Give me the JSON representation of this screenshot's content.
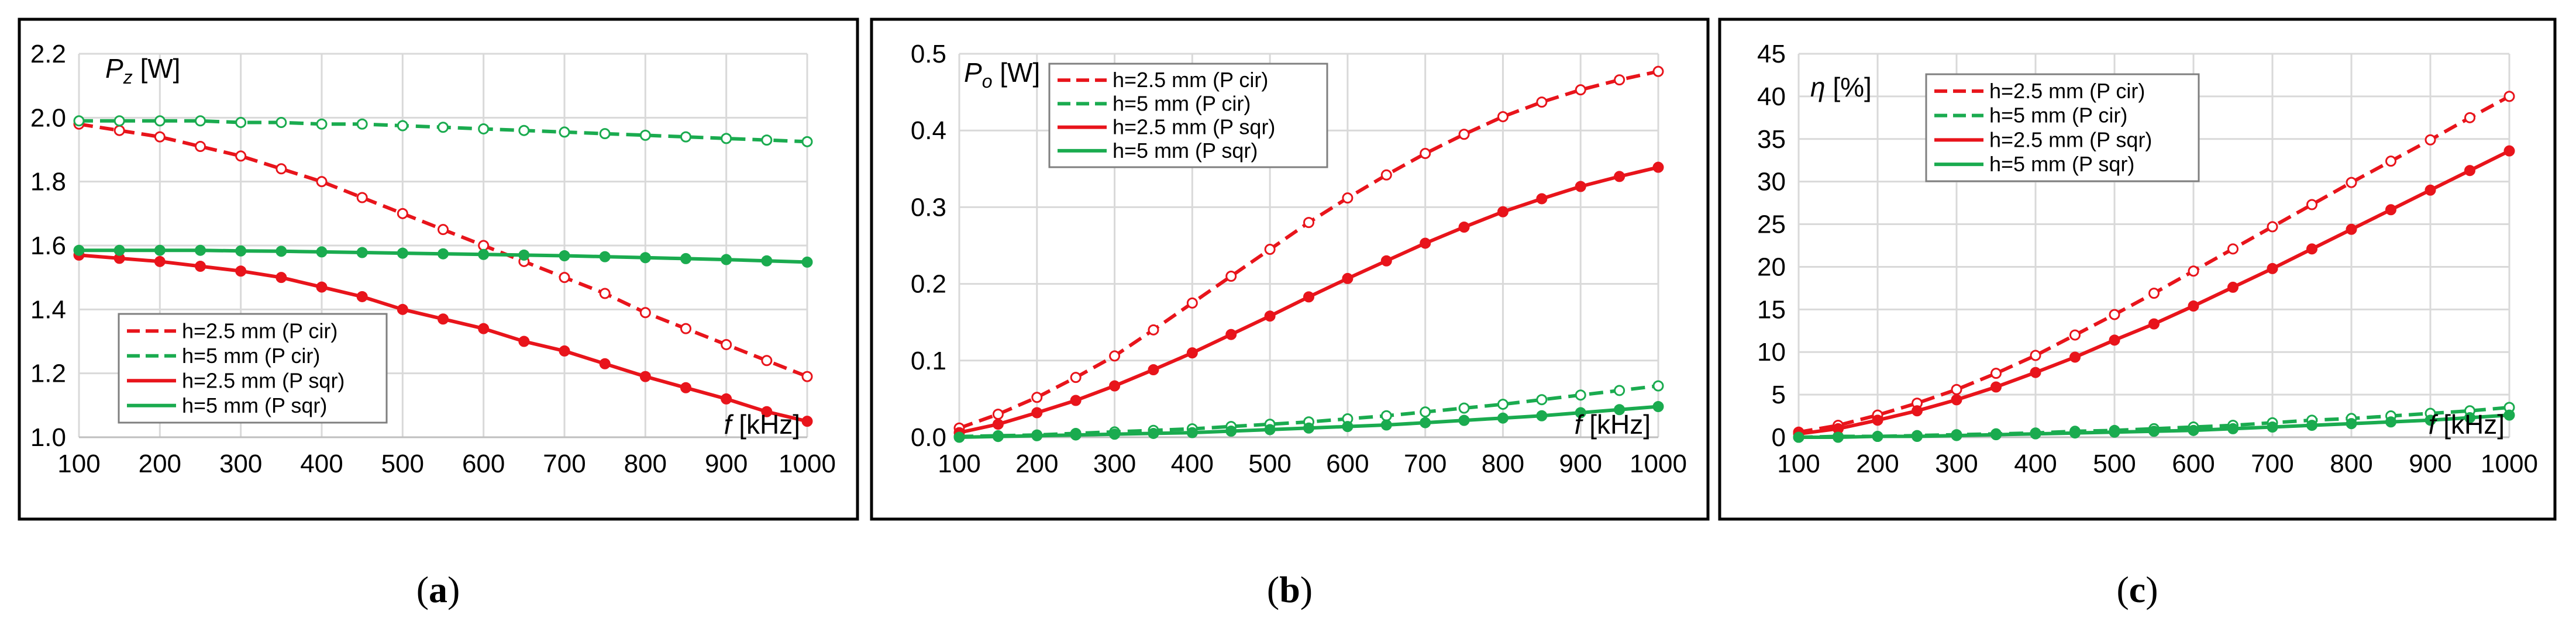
{
  "figure": {
    "captions": [
      "(a)",
      "(b)",
      "(c)"
    ]
  },
  "chart_data": [
    {
      "type": "line",
      "ylabel_symbol": "P",
      "ylabel_sub": "z",
      "ylabel_unit": " [W]",
      "xlabel_symbol": "f",
      "xlabel_unit": " [kHz]",
      "x": [
        100,
        150,
        200,
        250,
        300,
        350,
        400,
        450,
        500,
        550,
        600,
        650,
        700,
        750,
        800,
        850,
        900,
        950,
        1000
      ],
      "xlim": [
        100,
        1000
      ],
      "ylim": [
        1.0,
        2.2
      ],
      "xticks": [
        100,
        200,
        300,
        400,
        500,
        600,
        700,
        800,
        900,
        1000
      ],
      "yticks": [
        1.0,
        1.2,
        1.4,
        1.6,
        1.8,
        2.0,
        2.2
      ],
      "ytick_labels": [
        "1.0",
        "1.2",
        "1.4",
        "1.6",
        "1.8",
        "2.0",
        "2.2"
      ],
      "legend_position": "bottom-left",
      "series": [
        {
          "name": "h=2.5 mm (P cir)",
          "color": "#e8141b",
          "style": "dashed",
          "marker": "open",
          "values": [
            1.98,
            1.96,
            1.94,
            1.91,
            1.88,
            1.84,
            1.8,
            1.75,
            1.7,
            1.65,
            1.6,
            1.55,
            1.5,
            1.45,
            1.39,
            1.34,
            1.29,
            1.24,
            1.19
          ]
        },
        {
          "name": "h=5 mm (P cir)",
          "color": "#1aab4f",
          "style": "dashed",
          "marker": "open",
          "values": [
            1.99,
            1.99,
            1.99,
            1.99,
            1.985,
            1.985,
            1.98,
            1.98,
            1.975,
            1.97,
            1.965,
            1.96,
            1.955,
            1.95,
            1.945,
            1.94,
            1.935,
            1.93,
            1.925
          ]
        },
        {
          "name": "h=2.5 mm (P sqr)",
          "color": "#e8141b",
          "style": "solid",
          "marker": "filled",
          "values": [
            1.57,
            1.56,
            1.55,
            1.535,
            1.52,
            1.5,
            1.47,
            1.44,
            1.4,
            1.37,
            1.34,
            1.3,
            1.27,
            1.23,
            1.19,
            1.155,
            1.12,
            1.08,
            1.05
          ]
        },
        {
          "name": "h=5 mm (P sqr)",
          "color": "#1aab4f",
          "style": "solid",
          "marker": "filled",
          "values": [
            1.585,
            1.585,
            1.585,
            1.585,
            1.583,
            1.582,
            1.58,
            1.578,
            1.576,
            1.574,
            1.572,
            1.57,
            1.568,
            1.565,
            1.562,
            1.559,
            1.556,
            1.552,
            1.548
          ]
        }
      ]
    },
    {
      "type": "line",
      "ylabel_symbol": "P",
      "ylabel_sub": "o",
      "ylabel_unit": " [W]",
      "xlabel_symbol": "f",
      "xlabel_unit": " [kHz]",
      "x": [
        100,
        150,
        200,
        250,
        300,
        350,
        400,
        450,
        500,
        550,
        600,
        650,
        700,
        750,
        800,
        850,
        900,
        950,
        1000
      ],
      "xlim": [
        100,
        1000
      ],
      "ylim": [
        0.0,
        0.5
      ],
      "xticks": [
        100,
        200,
        300,
        400,
        500,
        600,
        700,
        800,
        900,
        1000
      ],
      "yticks": [
        0.0,
        0.1,
        0.2,
        0.3,
        0.4,
        0.5
      ],
      "ytick_labels": [
        "0.0",
        "0.1",
        "0.2",
        "0.3",
        "0.4",
        "0.5"
      ],
      "legend_position": "top-left",
      "series": [
        {
          "name": "h=2.5 mm (P cir)",
          "color": "#e8141b",
          "style": "dashed",
          "marker": "open",
          "values": [
            0.012,
            0.03,
            0.052,
            0.078,
            0.106,
            0.14,
            0.175,
            0.21,
            0.245,
            0.28,
            0.312,
            0.342,
            0.37,
            0.395,
            0.418,
            0.437,
            0.453,
            0.466,
            0.477
          ]
        },
        {
          "name": "h=5 mm (P cir)",
          "color": "#1aab4f",
          "style": "dashed",
          "marker": "open",
          "values": [
            0.001,
            0.002,
            0.003,
            0.005,
            0.007,
            0.009,
            0.011,
            0.014,
            0.017,
            0.02,
            0.024,
            0.028,
            0.033,
            0.038,
            0.043,
            0.049,
            0.055,
            0.061,
            0.067
          ]
        },
        {
          "name": "h=2.5 mm (P sqr)",
          "color": "#e8141b",
          "style": "solid",
          "marker": "filled",
          "values": [
            0.006,
            0.017,
            0.032,
            0.048,
            0.067,
            0.088,
            0.11,
            0.134,
            0.158,
            0.183,
            0.207,
            0.23,
            0.253,
            0.274,
            0.294,
            0.311,
            0.327,
            0.34,
            0.352
          ]
        },
        {
          "name": "h=5 mm (P sqr)",
          "color": "#1aab4f",
          "style": "solid",
          "marker": "filled",
          "values": [
            0.0,
            0.001,
            0.002,
            0.003,
            0.004,
            0.005,
            0.006,
            0.008,
            0.01,
            0.012,
            0.014,
            0.016,
            0.019,
            0.022,
            0.025,
            0.028,
            0.032,
            0.036,
            0.04
          ]
        }
      ]
    },
    {
      "type": "line",
      "ylabel_symbol": "η",
      "ylabel_sub": "",
      "ylabel_unit": " [%]",
      "xlabel_symbol": "f",
      "xlabel_unit": " [kHz]",
      "x": [
        100,
        150,
        200,
        250,
        300,
        350,
        400,
        450,
        500,
        550,
        600,
        650,
        700,
        750,
        800,
        850,
        900,
        950,
        1000
      ],
      "xlim": [
        100,
        1000
      ],
      "ylim": [
        0,
        45
      ],
      "xticks": [
        100,
        200,
        300,
        400,
        500,
        600,
        700,
        800,
        900,
        1000
      ],
      "yticks": [
        0,
        5,
        10,
        15,
        20,
        25,
        30,
        35,
        40,
        45
      ],
      "ytick_labels": [
        "0",
        "5",
        "10",
        "15",
        "20",
        "25",
        "30",
        "35",
        "40",
        "45"
      ],
      "legend_position": "top-left",
      "series": [
        {
          "name": "h=2.5 mm (P cir)",
          "color": "#e8141b",
          "style": "dashed",
          "marker": "open",
          "values": [
            0.6,
            1.4,
            2.6,
            4.0,
            5.6,
            7.5,
            9.6,
            12.0,
            14.4,
            16.9,
            19.5,
            22.1,
            24.7,
            27.3,
            29.9,
            32.4,
            34.9,
            37.5,
            40.0
          ]
        },
        {
          "name": "h=5 mm (P cir)",
          "color": "#1aab4f",
          "style": "dashed",
          "marker": "open",
          "values": [
            0.0,
            0.1,
            0.1,
            0.2,
            0.3,
            0.4,
            0.5,
            0.7,
            0.8,
            1.0,
            1.2,
            1.4,
            1.7,
            2.0,
            2.2,
            2.5,
            2.8,
            3.1,
            3.5
          ]
        },
        {
          "name": "h=2.5 mm (P sqr)",
          "color": "#e8141b",
          "style": "solid",
          "marker": "filled",
          "values": [
            0.4,
            1.0,
            2.0,
            3.1,
            4.4,
            5.9,
            7.6,
            9.4,
            11.4,
            13.3,
            15.4,
            17.6,
            19.8,
            22.1,
            24.4,
            26.7,
            29.0,
            31.3,
            33.6
          ]
        },
        {
          "name": "h=5 mm (P sqr)",
          "color": "#1aab4f",
          "style": "solid",
          "marker": "filled",
          "values": [
            0.0,
            0.0,
            0.1,
            0.1,
            0.2,
            0.3,
            0.4,
            0.5,
            0.6,
            0.7,
            0.8,
            1.0,
            1.2,
            1.4,
            1.6,
            1.8,
            2.0,
            2.3,
            2.6
          ]
        }
      ]
    }
  ]
}
